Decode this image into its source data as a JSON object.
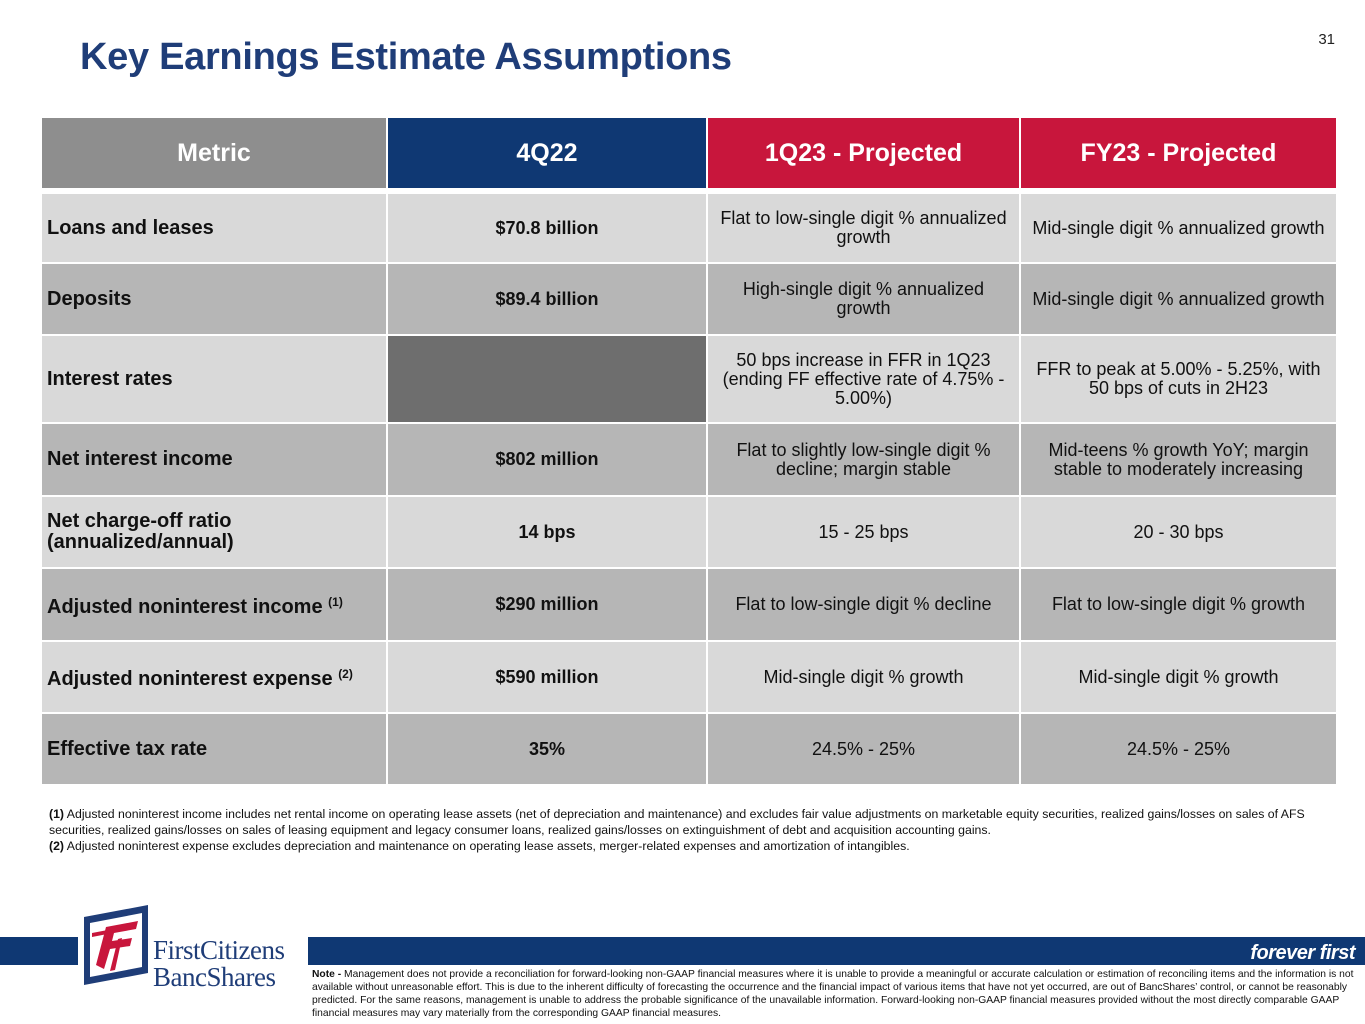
{
  "page_number": "31",
  "title": "Key Earnings Estimate Assumptions",
  "table": {
    "headers": {
      "metric": "Metric",
      "q4_22": "4Q22",
      "q1_23": "1Q23 - Projected",
      "fy23": "FY23 - Projected"
    },
    "rows": [
      {
        "metric": "Loans and leases",
        "q4_22": "$70.8 billion",
        "q1_23": "Flat to low-single digit % annualized growth",
        "fy23": "Mid-single digit % annualized growth"
      },
      {
        "metric": "Deposits",
        "q4_22": "$89.4 billion",
        "q1_23": "High-single digit % annualized growth",
        "fy23": "Mid-single digit % annualized growth"
      },
      {
        "metric": "Interest rates",
        "q4_22": "",
        "q1_23": "50 bps increase in FFR in 1Q23 (ending FF effective rate of 4.75% - 5.00%)",
        "fy23": "FFR to peak at 5.00% - 5.25%, with 50 bps of cuts in 2H23"
      },
      {
        "metric": "Net interest income",
        "q4_22": "$802 million",
        "q1_23": "Flat to slightly low-single digit % decline; margin stable",
        "fy23": "Mid-teens % growth YoY; margin stable to moderately increasing"
      },
      {
        "metric": "Net charge-off ratio (annualized/annual)",
        "q4_22": "14 bps",
        "q1_23": "15 - 25 bps",
        "fy23": "20 - 30 bps"
      },
      {
        "metric": "Adjusted noninterest income",
        "sup": "(1)",
        "q4_22": "$290 million",
        "q1_23": "Flat to low-single digit % decline",
        "fy23": "Flat to low-single digit % growth"
      },
      {
        "metric": "Adjusted noninterest expense",
        "sup": "(2)",
        "q4_22": "$590 million",
        "q1_23": "Mid-single digit % growth",
        "fy23": "Mid-single digit % growth"
      },
      {
        "metric": "Effective tax rate",
        "q4_22": "35%",
        "q1_23": "24.5% - 25%",
        "fy23": "24.5% - 25%"
      }
    ]
  },
  "footnotes": [
    {
      "marker": "(1)",
      "text": "Adjusted noninterest income includes net rental income on operating lease assets (net of depreciation and maintenance) and excludes fair value adjustments on marketable equity securities, realized gains/losses on sales of AFS securities, realized gains/losses on sales of leasing equipment and legacy consumer loans, realized gains/losses on extinguishment of debt and acquisition accounting gains."
    },
    {
      "marker": "(2)",
      "text": "Adjusted noninterest expense excludes depreciation and maintenance on operating lease assets, merger-related expenses and amortization of intangibles."
    }
  ],
  "logo": {
    "line1": "FirstCitizens",
    "line2": "BancShares"
  },
  "tagline": "forever first",
  "note": {
    "label": "Note -",
    "text": "Management does not provide a reconciliation for forward-looking non-GAAP financial measures where it is unable to provide a meaningful or accurate calculation or estimation of reconciling items and the information is not available without unreasonable effort.  This is due to the inherent difficulty of forecasting the occurrence and the financial impact of various items that have not yet occurred, are out of BancShares’ control, or cannot be reasonably predicted.  For the same reasons, management is unable to address the probable significance of the unavailable information.  Forward-looking non-GAAP financial measures provided without the most directly comparable GAAP financial measures may vary materially from the corresponding GAAP financial measures."
  },
  "colors": {
    "navy": "#0f3873",
    "red": "#c8163c",
    "header_gray": "#8e8e8e",
    "row_light": "#d9d9d9",
    "row_dark": "#b6b6b6",
    "blank_cell": "#6e6e6e"
  }
}
